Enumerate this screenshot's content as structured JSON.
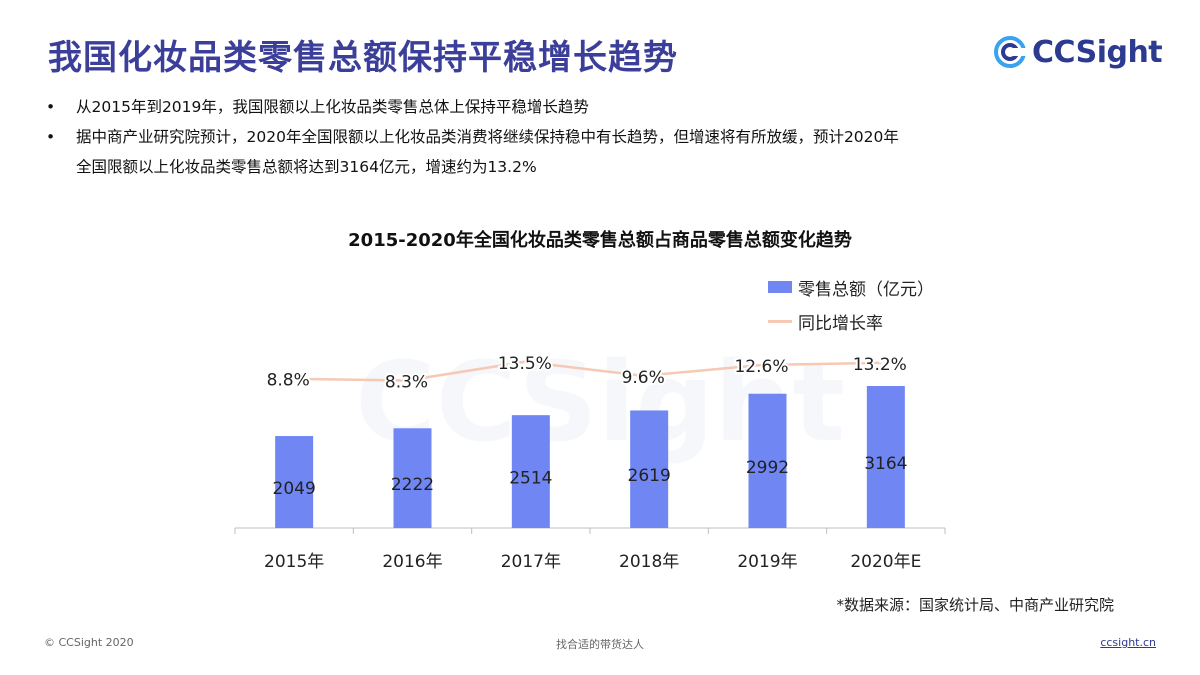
{
  "header": {
    "title": "我国化妆品类零售总额保持平稳增长趋势",
    "brand": "CCSight"
  },
  "bullets": [
    {
      "symbol": "•",
      "text": "从2015年到2019年，我国限额以上化妆品类零售总体上保持平稳增长趋势"
    },
    {
      "symbol": "•",
      "text": "据中商产业研究院预计，2020年全国限额以上化妆品类消费将继续保持稳中有长趋势，但增速将有所放缓，预计2020年"
    },
    {
      "symbol": "",
      "text": "全国限额以上化妆品类零售总额将达到3164亿元，增速约为13.2%"
    }
  ],
  "chart_data": {
    "type": "bar",
    "title": "2015-2020年全国化妆品类零售总额占商品零售总额变化趋势",
    "categories": [
      "2015年",
      "2016年",
      "2017年",
      "2018年",
      "2019年",
      "2020年E"
    ],
    "series": [
      {
        "name": "零售总额（亿元）",
        "type": "bar",
        "values": [
          2049,
          2222,
          2514,
          2619,
          2992,
          3164
        ],
        "labels": [
          "2049",
          "2222",
          "2514",
          "2619",
          "2992",
          "3164"
        ]
      },
      {
        "name": "同比增长率",
        "type": "line",
        "values": [
          8.8,
          8.3,
          13.5,
          9.6,
          12.6,
          13.2
        ],
        "labels": [
          "8.8%",
          "8.3%",
          "13.5%",
          "9.6%",
          "12.6%",
          "13.2%"
        ]
      }
    ],
    "legend_position": "top-right",
    "grid": false,
    "colors": {
      "bar": "#6f86f3",
      "line": "#f5c9b3"
    }
  },
  "source_note": "*数据来源：国家统计局、中商产业研究院",
  "footer": {
    "copyright": "© CCSight 2020",
    "slogan": "找合适的带货达人",
    "url": "ccsight.cn"
  }
}
